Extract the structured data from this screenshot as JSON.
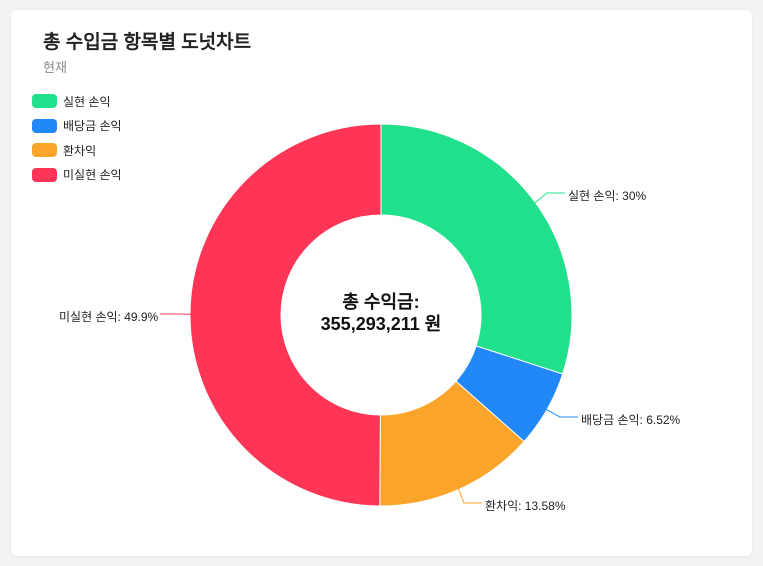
{
  "header": {
    "title": "총 수입금 항목별 도넛차트",
    "subtitle": "현재"
  },
  "center": {
    "line1": "총 수익금:",
    "line2": "355,293,211 원"
  },
  "legend": [
    {
      "label": "실현 손익",
      "color": "#21e08c"
    },
    {
      "label": "배당금 손익",
      "color": "#2388f7"
    },
    {
      "label": "환차익",
      "color": "#fba42a"
    },
    {
      "label": "미실현 손익",
      "color": "#fe3557"
    }
  ],
  "callouts": [
    {
      "text": "실현 손익: 30%"
    },
    {
      "text": "배당금 손익: 6.52%"
    },
    {
      "text": "환차익: 13.58%"
    },
    {
      "text": "미실현 손익: 49.9%"
    }
  ],
  "chart_data": {
    "type": "pie",
    "subtype": "donut",
    "title": "총 수입금 항목별 도넛차트",
    "subtitle": "현재",
    "categories": [
      "실현 손익",
      "배당금 손익",
      "환차익",
      "미실현 손익"
    ],
    "values": [
      30,
      6.52,
      13.58,
      49.9
    ],
    "unit": "%",
    "colors": [
      "#21e08c",
      "#2388f7",
      "#fba42a",
      "#fe3557"
    ],
    "center_label": "총 수익금: 355,293,211 원",
    "total": 355293211,
    "legend_position": "top-left"
  }
}
